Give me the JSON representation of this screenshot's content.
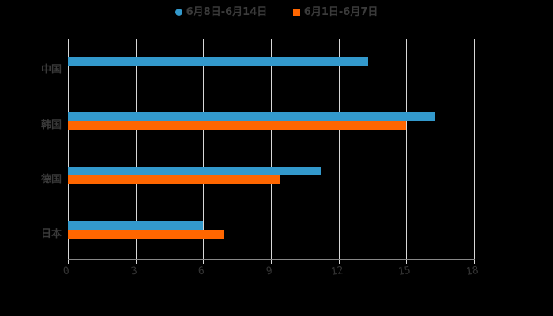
{
  "chart_data": {
    "type": "bar",
    "orientation": "horizontal",
    "title": "",
    "xlabel": "",
    "ylabel": "",
    "categories": [
      "中国",
      "韩国",
      "德国",
      "日本"
    ],
    "series": [
      {
        "name": "6月8日-6月14日",
        "color": "#3399cc",
        "values": [
          13.3,
          16.3,
          11.2,
          6.0
        ]
      },
      {
        "name": "6月1日-6月7日",
        "color": "#ff6600",
        "values": [
          null,
          15.0,
          9.4,
          6.9
        ]
      }
    ],
    "xlim": [
      0,
      18
    ],
    "xticks": [
      "0",
      "3",
      "6",
      "9",
      "12",
      "15",
      "18"
    ],
    "grid": true,
    "legend_position": "top"
  },
  "legend": {
    "items": [
      {
        "label": "6月8日-6月14日",
        "color": "#3399cc",
        "shape": "circle"
      },
      {
        "label": "6月1日-6月7日",
        "color": "#ff6600",
        "shape": "square"
      }
    ]
  }
}
